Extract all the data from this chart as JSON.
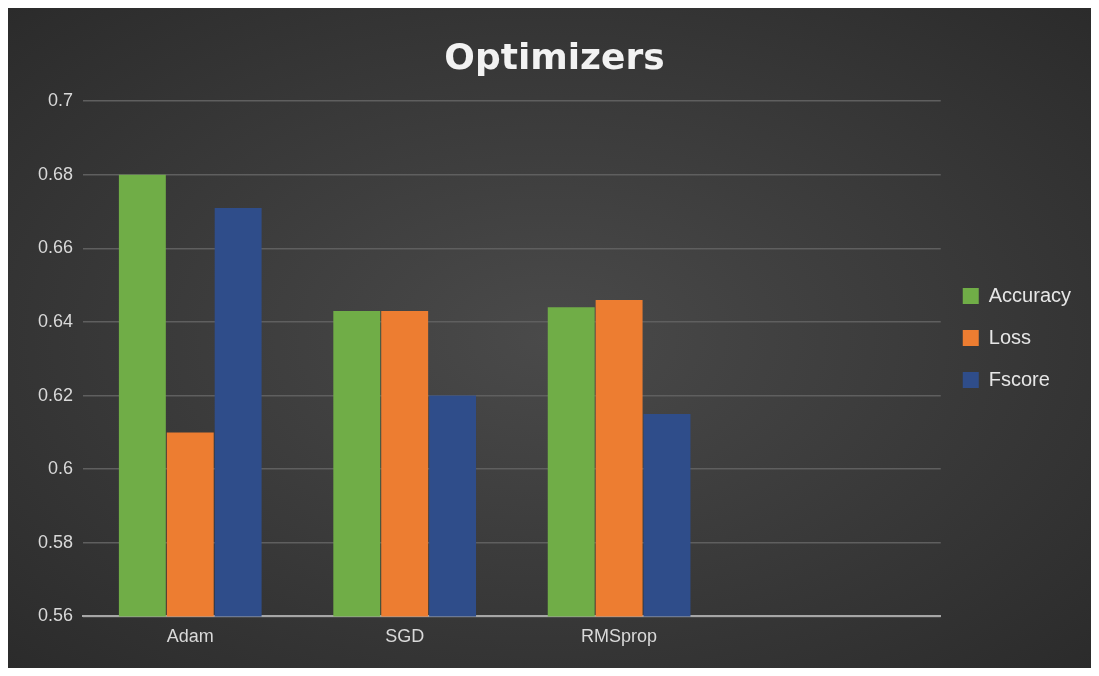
{
  "chart_data": {
    "type": "bar",
    "title": "Optimizers",
    "categories": [
      "Adam",
      "SGD",
      "RMSprop",
      null
    ],
    "series": [
      {
        "name": "Accuracy",
        "color": "#70ad47",
        "values": [
          0.68,
          0.643,
          0.644,
          null
        ]
      },
      {
        "name": "Loss",
        "color": "#ed7d31",
        "values": [
          0.61,
          0.643,
          0.646,
          null
        ]
      },
      {
        "name": "Fscore",
        "color": "#2f4d8a",
        "values": [
          0.671,
          0.62,
          0.615,
          null
        ]
      }
    ],
    "ylim": [
      0.56,
      0.7
    ],
    "yticks": [
      0.56,
      0.58,
      0.6,
      0.62,
      0.64,
      0.66,
      0.68,
      0.7
    ],
    "grid": "y",
    "legend": "right"
  }
}
